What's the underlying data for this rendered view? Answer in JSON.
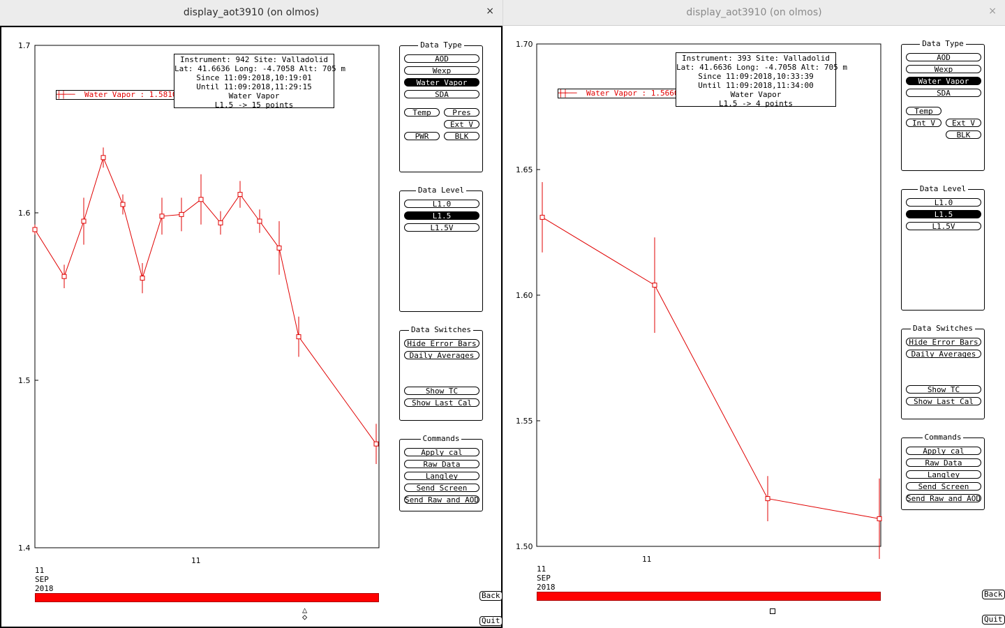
{
  "windows": [
    {
      "title": "display_aot3910 (on olmos)",
      "close": "×",
      "info": [
        "Instrument: 942 Site: Valladolid",
        "Lat: 41.6636 Long: -4.7058 Alt: 705 m",
        "Since 11:09:2018,10:19:01",
        "Until 11:09:2018,11:29:15",
        "Water Vapor",
        "L1.5 -> 15 points"
      ],
      "legend": "Water Vapor : 1.5810 ±",
      "y_ticks": [
        "1.7",
        "1.6",
        "1.5",
        "1.4"
      ],
      "x_tick": "11",
      "x_date": [
        "11",
        "SEP",
        "2018"
      ],
      "data_type": {
        "title": "Data Type",
        "aod": "AOD",
        "wexp": "Wexp",
        "water_vapor": "Water Vapor",
        "sda": "SDA",
        "temp": "Temp",
        "pres": "Pres",
        "ext_v": "Ext V",
        "pwr": "PWR",
        "blk": "BLK"
      },
      "data_level": {
        "title": "Data Level",
        "l10": "L1.0",
        "l15": "L1.5",
        "l15v": "L1.5V"
      },
      "data_switches": {
        "title": "Data Switches",
        "hide_error_bars": "Hide Error Bars",
        "daily_averages": "Daily Averages",
        "show_tc": "Show TC",
        "show_last_cal": "Show Last Cal"
      },
      "commands": {
        "title": "Commands",
        "apply_cal": "Apply cal",
        "raw_data": "Raw Data",
        "langley": "Langley",
        "send_screen": "Send Screen",
        "send_raw_aod": "Send Raw and AOD"
      },
      "back": "Back",
      "quit": "Quit"
    },
    {
      "title": "display_aot3910 (on olmos)",
      "close": "×",
      "info": [
        "Instrument: 393 Site: Valladolid",
        "Lat: 41.6636 Long: -4.7058 Alt: 705 m",
        "Since 11:09:2018,10:33:39",
        "Until 11:09:2018,11:34:00",
        "Water Vapor",
        "L1.5 -> 4 points"
      ],
      "legend": "Water Vapor : 1.5660 ±",
      "y_ticks": [
        "1.70",
        "1.65",
        "1.60",
        "1.55",
        "1.50"
      ],
      "x_tick": "11",
      "x_date": [
        "11",
        "SEP",
        "2018"
      ],
      "data_type": {
        "title": "Data Type",
        "aod": "AOD",
        "wexp": "Wexp",
        "water_vapor": "Water Vapor",
        "sda": "SDA",
        "temp": "Temp",
        "int_v": "Int V",
        "ext_v": "Ext V",
        "blk": "BLK"
      },
      "data_level": {
        "title": "Data Level",
        "l10": "L1.0",
        "l15": "L1.5",
        "l15v": "L1.5V"
      },
      "data_switches": {
        "title": "Data Switches",
        "hide_error_bars": "Hide Error Bars",
        "daily_averages": "Daily Averages",
        "show_tc": "Show TC",
        "show_last_cal": "Show Last Cal"
      },
      "commands": {
        "title": "Commands",
        "apply_cal": "Apply cal",
        "raw_data": "Raw Data",
        "langley": "Langley",
        "send_screen": "Send Screen",
        "send_raw_aod": "Send Raw and AOD"
      },
      "back": "Back",
      "quit": "Quit"
    }
  ],
  "colors": {
    "series": "#e00000",
    "bar": "#ff0000"
  },
  "chart_data": [
    {
      "type": "line",
      "ylim": [
        1.4,
        1.7
      ],
      "series": [
        {
          "name": "Water Vapor",
          "values": [
            1.59,
            1.562,
            1.595,
            1.633,
            1.605,
            1.561,
            1.598,
            1.599,
            1.608,
            1.594,
            1.611,
            1.595,
            1.579,
            1.526,
            1.462
          ],
          "errors": [
            0.003,
            0.007,
            0.014,
            0.006,
            0.006,
            0.009,
            0.011,
            0.01,
            0.015,
            0.007,
            0.008,
            0.007,
            0.016,
            0.012,
            0.012
          ]
        }
      ]
    },
    {
      "type": "line",
      "ylim": [
        1.5,
        1.7
      ],
      "series": [
        {
          "name": "Water Vapor",
          "values": [
            1.631,
            1.604,
            1.519,
            1.511
          ],
          "errors": [
            0.014,
            0.019,
            0.009,
            0.016
          ]
        }
      ]
    }
  ]
}
